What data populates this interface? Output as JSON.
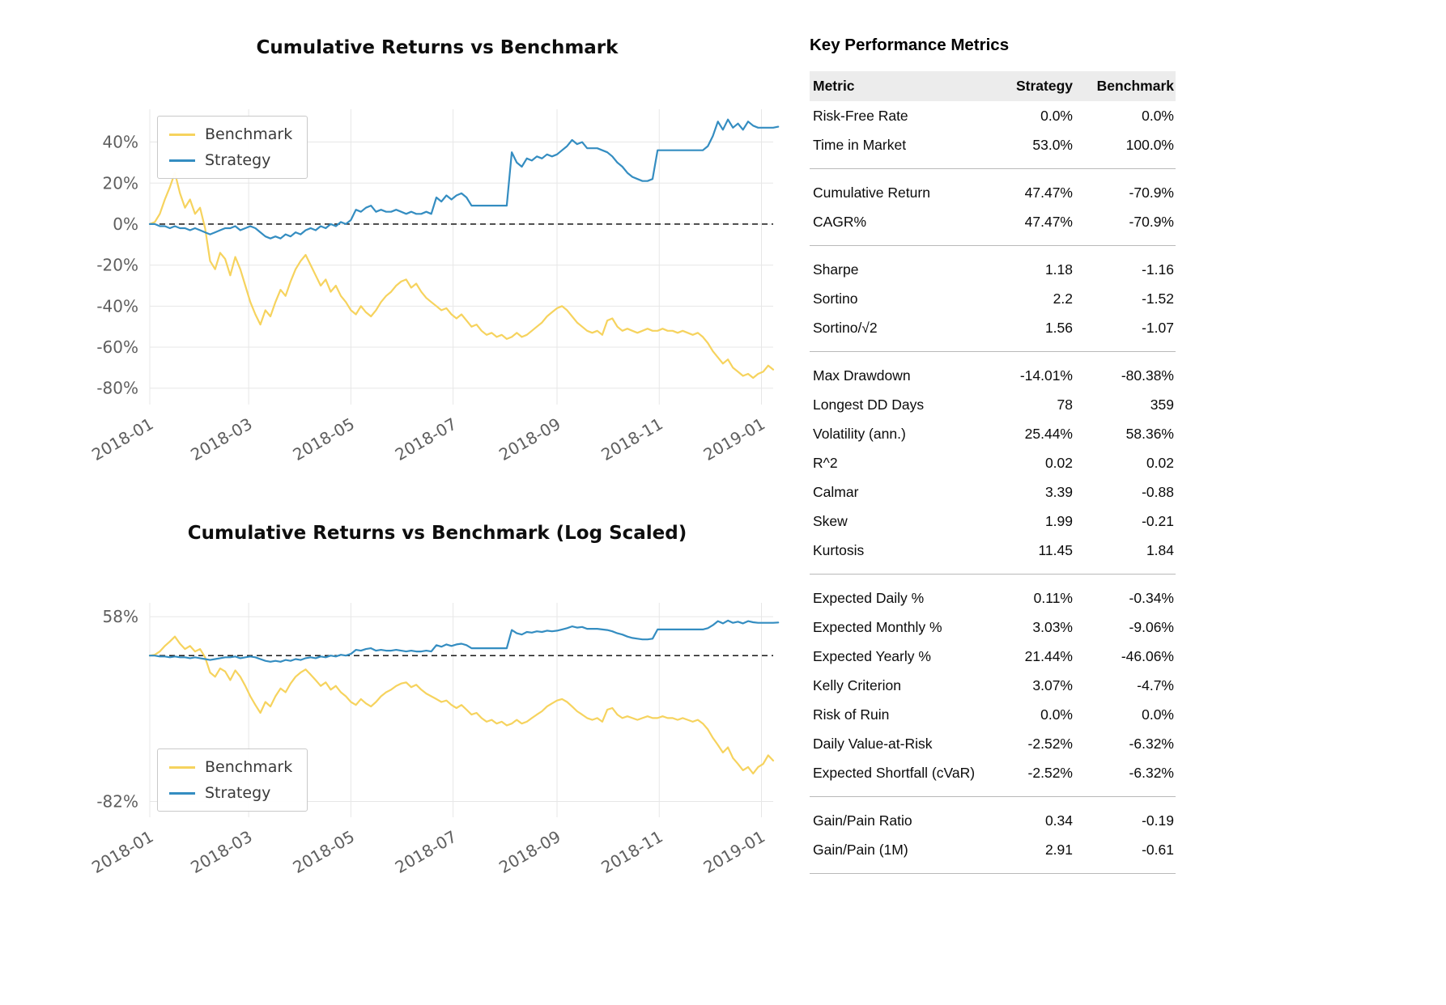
{
  "colors": {
    "benchmark": "#f6d35e",
    "strategy": "#348dc1",
    "grid": "#e7e7e7",
    "axis_text": "#5f5f5f",
    "zero_line": "#000000",
    "table_header_bg": "#ececec",
    "separator": "#b9b9b9"
  },
  "chart_data": [
    {
      "type": "line",
      "title": "Cumulative Returns vs Benchmark",
      "yscale": "linear",
      "grid": true,
      "zero_line_style": "dashed-black",
      "legend_position": "top-left",
      "x_tick_labels": [
        "2018-01",
        "2018-03",
        "2018-05",
        "2018-07",
        "2018-09",
        "2018-11",
        "2019-01"
      ],
      "x_tick_days": [
        0,
        59,
        120,
        181,
        243,
        304,
        365
      ],
      "x_domain_days": [
        0,
        372
      ],
      "point_step_days": 3,
      "y_tick_values_pct": [
        40,
        20,
        0,
        -20,
        -40,
        -60,
        -80
      ],
      "ylim": [
        -88,
        56
      ],
      "series": [
        {
          "name": "Benchmark",
          "color": "#f6d35e",
          "values_pct": [
            0,
            1,
            5,
            12,
            18,
            25,
            15,
            8,
            12,
            5,
            8,
            -2,
            -18,
            -22,
            -14,
            -17,
            -25,
            -16,
            -22,
            -30,
            -38,
            -44,
            -49,
            -42,
            -45,
            -38,
            -32,
            -35,
            -28,
            -22,
            -18,
            -15,
            -20,
            -25,
            -30,
            -27,
            -33,
            -30,
            -35,
            -38,
            -42,
            -44,
            -40,
            -43,
            -45,
            -42,
            -38,
            -35,
            -33,
            -30,
            -28,
            -27,
            -31,
            -29,
            -33,
            -36,
            -38,
            -40,
            -42,
            -41,
            -44,
            -46,
            -44,
            -47,
            -50,
            -49,
            -52,
            -54,
            -53,
            -55,
            -54,
            -56,
            -55,
            -53,
            -55,
            -54,
            -52,
            -50,
            -48,
            -45,
            -43,
            -41,
            -40,
            -42,
            -45,
            -48,
            -50,
            -52,
            -53,
            -52,
            -54,
            -47,
            -46,
            -50,
            -52,
            -51,
            -52,
            -53,
            -52,
            -51,
            -52,
            -52,
            -51,
            -52,
            -52,
            -53,
            -52,
            -53,
            -54,
            -53,
            -55,
            -58,
            -62,
            -65,
            -68,
            -66,
            -70,
            -72,
            -74,
            -73,
            -75,
            -73,
            -72,
            -69,
            -70.9
          ]
        },
        {
          "name": "Strategy",
          "color": "#348dc1",
          "values_pct": [
            0,
            0,
            -1,
            -1,
            -2,
            -1,
            -2,
            -2,
            -3,
            -2,
            -3,
            -4,
            -5,
            -4,
            -3,
            -2,
            -2,
            -1,
            -3,
            -2,
            -1,
            -2,
            -4,
            -6,
            -7,
            -6,
            -7,
            -5,
            -6,
            -4,
            -5,
            -3,
            -2,
            -3,
            -1,
            -2,
            0,
            -1,
            1,
            0,
            2,
            7,
            6,
            8,
            9,
            6,
            7,
            6,
            6,
            7,
            6,
            5,
            6,
            5,
            5,
            6,
            5,
            13,
            11,
            14,
            12,
            14,
            15,
            13,
            9,
            9,
            9,
            9,
            9,
            9,
            9,
            9,
            35,
            30,
            28,
            32,
            31,
            33,
            32,
            34,
            33,
            34,
            36,
            38,
            41,
            39,
            40,
            37,
            37,
            37,
            36,
            35,
            33,
            30,
            28,
            25,
            23,
            22,
            21,
            21,
            22,
            36,
            36,
            36,
            36,
            36,
            36,
            36,
            36,
            36,
            36,
            38,
            43,
            50,
            46,
            51,
            47,
            49,
            46,
            50,
            48,
            47,
            47,
            47,
            47,
            47.47
          ]
        }
      ]
    },
    {
      "type": "line",
      "title": "Cumulative Returns vs Benchmark (Log Scaled)",
      "yscale": "log",
      "grid": true,
      "zero_line_style": "dashed-black",
      "legend_position": "bottom-left",
      "x_tick_labels": [
        "2018-01",
        "2018-03",
        "2018-05",
        "2018-07",
        "2018-09",
        "2018-11",
        "2019-01"
      ],
      "x_tick_days": [
        0,
        59,
        120,
        181,
        243,
        304,
        365
      ],
      "x_domain_days": [
        0,
        372
      ],
      "y_tick_values_pct": [
        58,
        -82
      ],
      "ylim_log": [
        -1.9,
        0.62
      ],
      "series_ref": 0
    }
  ],
  "metrics_table": {
    "title": "Key Performance Metrics",
    "columns": [
      "Metric",
      "Strategy",
      "Benchmark"
    ],
    "groups": [
      {
        "rows": [
          [
            "Risk-Free Rate",
            "0.0%",
            "0.0%"
          ],
          [
            "Time in Market",
            "53.0%",
            "100.0%"
          ]
        ]
      },
      {
        "rows": [
          [
            "Cumulative Return",
            "47.47%",
            "-70.9%"
          ],
          [
            "CAGR%",
            "47.47%",
            "-70.9%"
          ]
        ]
      },
      {
        "rows": [
          [
            "Sharpe",
            "1.18",
            "-1.16"
          ],
          [
            "Sortino",
            "2.2",
            "-1.52"
          ],
          [
            "Sortino/√2",
            "1.56",
            "-1.07"
          ]
        ]
      },
      {
        "rows": [
          [
            "Max Drawdown",
            "-14.01%",
            "-80.38%"
          ],
          [
            "Longest DD Days",
            "78",
            "359"
          ],
          [
            "Volatility (ann.)",
            "25.44%",
            "58.36%"
          ],
          [
            "R^2",
            "0.02",
            "0.02"
          ],
          [
            "Calmar",
            "3.39",
            "-0.88"
          ],
          [
            "Skew",
            "1.99",
            "-0.21"
          ],
          [
            "Kurtosis",
            "11.45",
            "1.84"
          ]
        ]
      },
      {
        "rows": [
          [
            "Expected Daily %",
            "0.11%",
            "-0.34%"
          ],
          [
            "Expected Monthly %",
            "3.03%",
            "-9.06%"
          ],
          [
            "Expected Yearly %",
            "21.44%",
            "-46.06%"
          ],
          [
            "Kelly Criterion",
            "3.07%",
            "-4.7%"
          ],
          [
            "Risk of Ruin",
            "0.0%",
            "0.0%"
          ],
          [
            "Daily Value-at-Risk",
            "-2.52%",
            "-6.32%"
          ],
          [
            "Expected Shortfall (cVaR)",
            "-2.52%",
            "-6.32%"
          ]
        ]
      },
      {
        "rows": [
          [
            "Gain/Pain Ratio",
            "0.34",
            "-0.19"
          ],
          [
            "Gain/Pain (1M)",
            "2.91",
            "-0.61"
          ]
        ]
      }
    ]
  }
}
